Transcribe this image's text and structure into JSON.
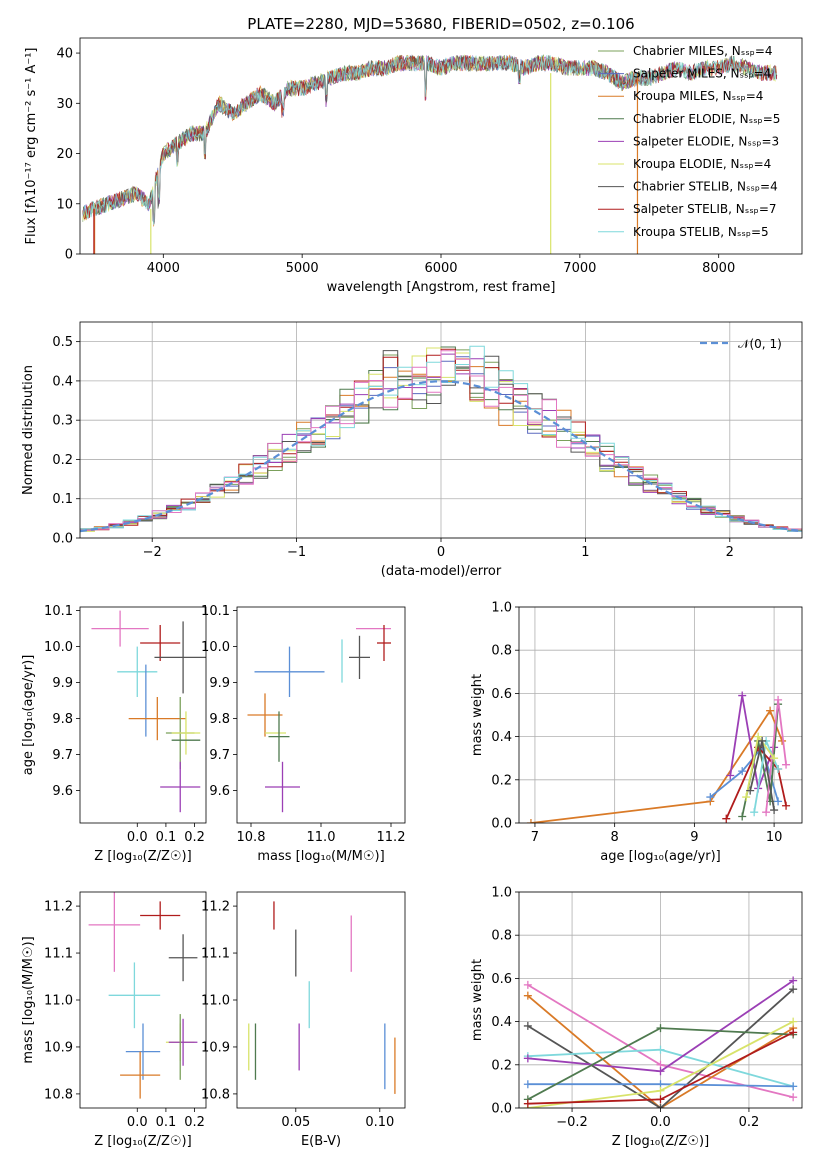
{
  "chart_data": [
    {
      "type": "line",
      "title": "PLATE=2280, MJD=53680, FIBERID=0502, z=0.106",
      "xlabel": "wavelength [Angstrom, rest frame]",
      "ylabel": "Flux [fλ10⁻¹⁷ erg cm⁻² s⁻¹ A⁻¹]",
      "xlim": [
        3400,
        8600
      ],
      "ylim": [
        0,
        43
      ],
      "xticks": [
        4000,
        5000,
        6000,
        7000,
        8000
      ],
      "yticks": [
        0,
        10,
        20,
        30,
        40
      ],
      "grid": false,
      "legend_position": "right",
      "series": [
        {
          "name": "Chabrier MILES, N_SSP=4",
          "color": "#7ba05b"
        },
        {
          "name": "Salpeter MILES, N_SSP=4",
          "color": "#5b6abf"
        },
        {
          "name": "Kroupa MILES, N_SSP=4",
          "color": "#d97a27"
        },
        {
          "name": "Chabrier ELODIE, N_SSP=5",
          "color": "#4f7a4f"
        },
        {
          "name": "Salpeter ELODIE, N_SSP=3",
          "color": "#9b3fb5"
        },
        {
          "name": "Kroupa ELODIE, N_SSP=4",
          "color": "#d8e36a"
        },
        {
          "name": "Chabrier STELIB, N_SSP=4",
          "color": "#555555"
        },
        {
          "name": "Salpeter STELIB, N_SSP=7",
          "color": "#b01c1c"
        },
        {
          "name": "Kroupa STELIB, N_SSP=5",
          "color": "#7fd8dc"
        }
      ],
      "spectrum_x": [
        3420,
        3500,
        3600,
        3700,
        3800,
        3900,
        4000,
        4100,
        4200,
        4300,
        4400,
        4500,
        4600,
        4700,
        4800,
        4900,
        5000,
        5100,
        5200,
        5300,
        5400,
        5500,
        5600,
        5700,
        5800,
        5900,
        6000,
        6100,
        6200,
        6300,
        6400,
        6500,
        6600,
        6700,
        6800,
        6900,
        7000,
        7100,
        7200,
        7300,
        7400,
        7500,
        7600,
        7700,
        7800,
        7900,
        8000,
        8100,
        8200,
        8300,
        8400
      ],
      "spectrum_y": [
        8,
        9,
        10,
        11,
        12,
        10,
        20,
        22,
        24,
        24,
        30,
        28,
        30,
        32,
        30,
        33,
        33,
        34,
        35,
        36,
        36,
        37,
        37,
        38,
        38,
        38,
        37,
        38,
        38,
        38,
        38,
        38,
        37,
        38,
        38,
        37,
        37,
        37,
        36,
        34,
        35,
        35,
        36,
        37,
        36,
        37,
        37,
        38,
        37,
        36,
        36
      ]
    },
    {
      "type": "bar",
      "xlabel": "(data-model)/error",
      "ylabel": "Normed distribution",
      "xlim": [
        -2.5,
        2.5
      ],
      "ylim": [
        0,
        0.55
      ],
      "xticks": [
        -2,
        -1,
        0,
        1,
        2
      ],
      "yticks": [
        0.0,
        0.1,
        0.2,
        0.3,
        0.4,
        0.5
      ],
      "grid": true,
      "legend_position": "top-right",
      "reference_curve": {
        "name": "𝒩(0, 1)",
        "mean": 0,
        "std": 1,
        "color": "#5b8fd6"
      },
      "bin_width": 0.1,
      "series_colors": [
        "#7ba05b",
        "#5b6abf",
        "#d97a27",
        "#4f7a4f",
        "#9b3fb5",
        "#d8e36a",
        "#555555",
        "#b01c1c",
        "#7fd8dc",
        "#e377c2"
      ]
    },
    {
      "type": "scatter",
      "xlabel": "Z [log₁₀(Z/Z☉)]",
      "ylabel": "age  [log₁₀(age/yr)]",
      "xlim": [
        -0.2,
        0.24
      ],
      "ylim": [
        9.51,
        10.11
      ],
      "xticks": [
        0.0,
        0.1,
        0.2
      ],
      "yticks": [
        9.6,
        9.7,
        9.8,
        9.9,
        10.0,
        10.1
      ],
      "points": [
        {
          "x": -0.06,
          "y": 10.05,
          "xerr": 0.1,
          "yerr": 0.05,
          "color": "#e377c2"
        },
        {
          "x": 0.08,
          "y": 10.01,
          "xerr": 0.07,
          "yerr": 0.05,
          "color": "#b01c1c"
        },
        {
          "x": 0.16,
          "y": 9.97,
          "xerr": 0.1,
          "yerr": 0.1,
          "color": "#555555"
        },
        {
          "x": 0.0,
          "y": 9.93,
          "xerr": 0.07,
          "yerr": 0.07,
          "color": "#7fd8dc"
        },
        {
          "x": 0.03,
          "y": 9.85,
          "xerr": 0.0,
          "yerr": 0.1,
          "color": "#5b8fd6"
        },
        {
          "x": 0.07,
          "y": 9.8,
          "xerr": 0.1,
          "yerr": 0.06,
          "color": "#d97a27"
        },
        {
          "x": 0.15,
          "y": 9.76,
          "xerr": 0.05,
          "yerr": 0.1,
          "color": "#7ba05b"
        },
        {
          "x": 0.17,
          "y": 9.76,
          "xerr": 0.05,
          "yerr": 0.06,
          "color": "#d8e36a"
        },
        {
          "x": 0.17,
          "y": 9.74,
          "xerr": 0.05,
          "yerr": 0.0,
          "color": "#4f7a4f"
        },
        {
          "x": 0.15,
          "y": 9.61,
          "xerr": 0.07,
          "yerr": 0.07,
          "color": "#9b3fb5"
        }
      ]
    },
    {
      "type": "scatter",
      "xlabel": "mass [log₁₀(M/M☉)]",
      "ylabel": "",
      "xlim": [
        10.76,
        11.24
      ],
      "ylim": [
        9.51,
        10.11
      ],
      "xticks": [
        10.8,
        11.0,
        11.2
      ],
      "yticks": [
        9.6,
        9.7,
        9.8,
        9.9,
        10.0,
        10.1
      ],
      "points": [
        {
          "x": 11.15,
          "y": 10.05,
          "xerr": 0.05,
          "yerr": 0.0,
          "color": "#e377c2"
        },
        {
          "x": 11.18,
          "y": 10.01,
          "xerr": 0.02,
          "yerr": 0.05,
          "color": "#b01c1c"
        },
        {
          "x": 11.11,
          "y": 9.97,
          "xerr": 0.03,
          "yerr": 0.06,
          "color": "#555555"
        },
        {
          "x": 11.06,
          "y": 9.96,
          "xerr": 0.0,
          "yerr": 0.06,
          "color": "#7fd8dc"
        },
        {
          "x": 10.91,
          "y": 9.93,
          "xerr": 0.1,
          "yerr": 0.07,
          "color": "#5b8fd6"
        },
        {
          "x": 10.84,
          "y": 9.81,
          "xerr": 0.05,
          "yerr": 0.06,
          "color": "#d97a27"
        },
        {
          "x": 10.87,
          "y": 9.76,
          "xerr": 0.03,
          "yerr": 0.0,
          "color": "#d8e36a"
        },
        {
          "x": 10.88,
          "y": 9.75,
          "xerr": 0.03,
          "yerr": 0.07,
          "color": "#4f7a4f"
        },
        {
          "x": 10.89,
          "y": 9.61,
          "xerr": 0.05,
          "yerr": 0.07,
          "color": "#9b3fb5"
        }
      ]
    },
    {
      "type": "line",
      "xlabel": "age  [log₁₀(age/yr)]",
      "ylabel": "mass weight",
      "xlim": [
        6.8,
        10.35
      ],
      "ylim": [
        0,
        1.0
      ],
      "xticks": [
        7,
        8,
        9,
        10
      ],
      "yticks": [
        0.0,
        0.2,
        0.4,
        0.6,
        0.8,
        1.0
      ],
      "grid": true,
      "series": [
        {
          "color": "#d97a27",
          "x": [
            6.95,
            9.2,
            9.95,
            10.1
          ],
          "y": [
            0.0,
            0.1,
            0.52,
            0.38
          ]
        },
        {
          "color": "#5b8fd6",
          "x": [
            9.2,
            9.6,
            9.85,
            10.05
          ],
          "y": [
            0.12,
            0.24,
            0.35,
            0.1
          ]
        },
        {
          "color": "#9b3fb5",
          "x": [
            9.45,
            9.6,
            9.8,
            10.0
          ],
          "y": [
            0.22,
            0.59,
            0.16,
            0.35
          ]
        },
        {
          "color": "#b01c1c",
          "x": [
            9.4,
            9.8,
            10.05,
            10.15
          ],
          "y": [
            0.02,
            0.35,
            0.25,
            0.08
          ]
        },
        {
          "color": "#4f7a4f",
          "x": [
            9.6,
            9.8,
            9.95,
            10.05
          ],
          "y": [
            0.03,
            0.38,
            0.1,
            0.55
          ]
        },
        {
          "color": "#e377c2",
          "x": [
            9.9,
            10.05,
            10.15
          ],
          "y": [
            0.05,
            0.57,
            0.27
          ]
        },
        {
          "color": "#7fd8dc",
          "x": [
            9.75,
            9.9,
            10.05
          ],
          "y": [
            0.05,
            0.38,
            0.25
          ]
        },
        {
          "color": "#d8e36a",
          "x": [
            9.65,
            9.8,
            10.0
          ],
          "y": [
            0.12,
            0.4,
            0.3
          ]
        },
        {
          "color": "#555555",
          "x": [
            9.7,
            9.85,
            10.0
          ],
          "y": [
            0.15,
            0.38,
            0.06
          ]
        }
      ]
    },
    {
      "type": "scatter",
      "xlabel": "Z [log₁₀(Z/Z☉)]",
      "ylabel": "mass [log₁₀(M/M☉)]",
      "xlim": [
        -0.2,
        0.24
      ],
      "ylim": [
        10.77,
        11.23
      ],
      "xticks": [
        0.0,
        0.1,
        0.2
      ],
      "yticks": [
        10.8,
        10.9,
        11.0,
        11.1,
        11.2
      ],
      "points": [
        {
          "x": 0.08,
          "y": 11.18,
          "xerr": 0.07,
          "yerr": 0.03,
          "color": "#b01c1c"
        },
        {
          "x": -0.08,
          "y": 11.16,
          "xerr": 0.09,
          "yerr": 0.1,
          "color": "#e377c2"
        },
        {
          "x": 0.16,
          "y": 11.09,
          "xerr": 0.05,
          "yerr": 0.05,
          "color": "#555555"
        },
        {
          "x": -0.01,
          "y": 11.01,
          "xerr": 0.09,
          "yerr": 0.07,
          "color": "#7fd8dc"
        },
        {
          "x": 0.15,
          "y": 10.91,
          "xerr": 0.05,
          "yerr": 0.04,
          "color": "#d8e36a"
        },
        {
          "x": 0.16,
          "y": 10.91,
          "xerr": 0.05,
          "yerr": 0.05,
          "color": "#9b3fb5"
        },
        {
          "x": 0.02,
          "y": 10.89,
          "xerr": 0.06,
          "yerr": 0.06,
          "color": "#5b8fd6"
        },
        {
          "x": 0.15,
          "y": 10.9,
          "xerr": 0.0,
          "yerr": 0.07,
          "color": "#7ba05b"
        },
        {
          "x": 0.01,
          "y": 10.84,
          "xerr": 0.07,
          "yerr": 0.05,
          "color": "#d97a27"
        }
      ]
    },
    {
      "type": "scatter",
      "xlabel": "E(B-V)",
      "ylabel": "",
      "xlim": [
        0.015,
        0.115
      ],
      "ylim": [
        10.77,
        11.23
      ],
      "xticks": [
        0.05,
        0.1
      ],
      "yticks": [
        10.8,
        10.9,
        11.0,
        11.1,
        11.2
      ],
      "points": [
        {
          "x": 0.037,
          "y": 11.18,
          "yerr": 0.03,
          "color": "#b01c1c"
        },
        {
          "x": 0.083,
          "y": 11.12,
          "yerr": 0.06,
          "color": "#e377c2"
        },
        {
          "x": 0.05,
          "y": 11.1,
          "yerr": 0.05,
          "color": "#555555"
        },
        {
          "x": 0.058,
          "y": 10.99,
          "yerr": 0.05,
          "color": "#7fd8dc"
        },
        {
          "x": 0.052,
          "y": 10.9,
          "yerr": 0.05,
          "color": "#9b3fb5"
        },
        {
          "x": 0.022,
          "y": 10.9,
          "yerr": 0.05,
          "color": "#d8e36a"
        },
        {
          "x": 0.026,
          "y": 10.89,
          "yerr": 0.06,
          "color": "#4f7a4f"
        },
        {
          "x": 0.103,
          "y": 10.88,
          "yerr": 0.07,
          "color": "#5b8fd6"
        },
        {
          "x": 0.109,
          "y": 10.86,
          "yerr": 0.06,
          "color": "#d97a27"
        }
      ]
    },
    {
      "type": "line",
      "xlabel": "Z [log₁₀(Z/Z☉)]",
      "ylabel": "mass weight",
      "xlim": [
        -0.32,
        0.32
      ],
      "ylim": [
        0,
        1.0
      ],
      "xticks": [
        -0.2,
        0.0,
        0.2
      ],
      "yticks": [
        0.0,
        0.2,
        0.4,
        0.6,
        0.8,
        1.0
      ],
      "grid": true,
      "series": [
        {
          "color": "#e377c2",
          "x": [
            -0.3,
            0.0,
            0.3
          ],
          "y": [
            0.57,
            0.2,
            0.05
          ]
        },
        {
          "color": "#d97a27",
          "x": [
            -0.3,
            0.0,
            0.3
          ],
          "y": [
            0.52,
            0.0,
            0.37
          ]
        },
        {
          "color": "#555555",
          "x": [
            -0.3,
            0.0,
            0.3
          ],
          "y": [
            0.38,
            0.0,
            0.55
          ]
        },
        {
          "color": "#7fd8dc",
          "x": [
            -0.3,
            0.0,
            0.3
          ],
          "y": [
            0.24,
            0.27,
            0.1
          ]
        },
        {
          "color": "#9b3fb5",
          "x": [
            -0.3,
            0.0,
            0.3
          ],
          "y": [
            0.23,
            0.17,
            0.59
          ]
        },
        {
          "color": "#5b8fd6",
          "x": [
            -0.3,
            0.0,
            0.3
          ],
          "y": [
            0.11,
            0.11,
            0.1
          ]
        },
        {
          "color": "#4f7a4f",
          "x": [
            -0.3,
            0.0,
            0.3
          ],
          "y": [
            0.04,
            0.37,
            0.34
          ]
        },
        {
          "color": "#d8e36a",
          "x": [
            -0.3,
            0.0,
            0.3
          ],
          "y": [
            0.0,
            0.08,
            0.4
          ]
        },
        {
          "color": "#b01c1c",
          "x": [
            -0.3,
            0.0,
            0.3
          ],
          "y": [
            0.02,
            0.04,
            0.35
          ]
        }
      ]
    }
  ]
}
